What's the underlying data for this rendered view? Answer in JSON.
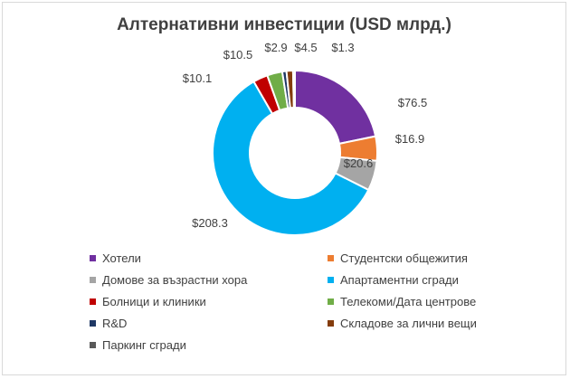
{
  "chart_data": {
    "type": "pie",
    "title": "Алтернативни инвестиции (USD млрд.)",
    "donut": true,
    "categories": [
      "Хотели",
      "Студентски общежития",
      "Домове за възрастни хора",
      "Апартаментни сгради",
      "Болници и клиники",
      "Телекоми/Дата центрове",
      "R&D",
      "Складове за лични вещи",
      "Паркинг сгради"
    ],
    "values": [
      76.5,
      16.9,
      20.6,
      208.3,
      10.1,
      10.5,
      2.9,
      4.5,
      1.3
    ],
    "data_labels": [
      "$76.5",
      "$16.9",
      "$20.6",
      "$208.3",
      "$10.1",
      "$10.5",
      "$2.9",
      "$4.5",
      "$1.3"
    ],
    "colors": [
      "#7030a0",
      "#ed7d31",
      "#a5a5a5",
      "#00b0f0",
      "#c00000",
      "#70ad47",
      "#1f3864",
      "#843c0c",
      "#595959"
    ],
    "legend_position": "bottom"
  }
}
